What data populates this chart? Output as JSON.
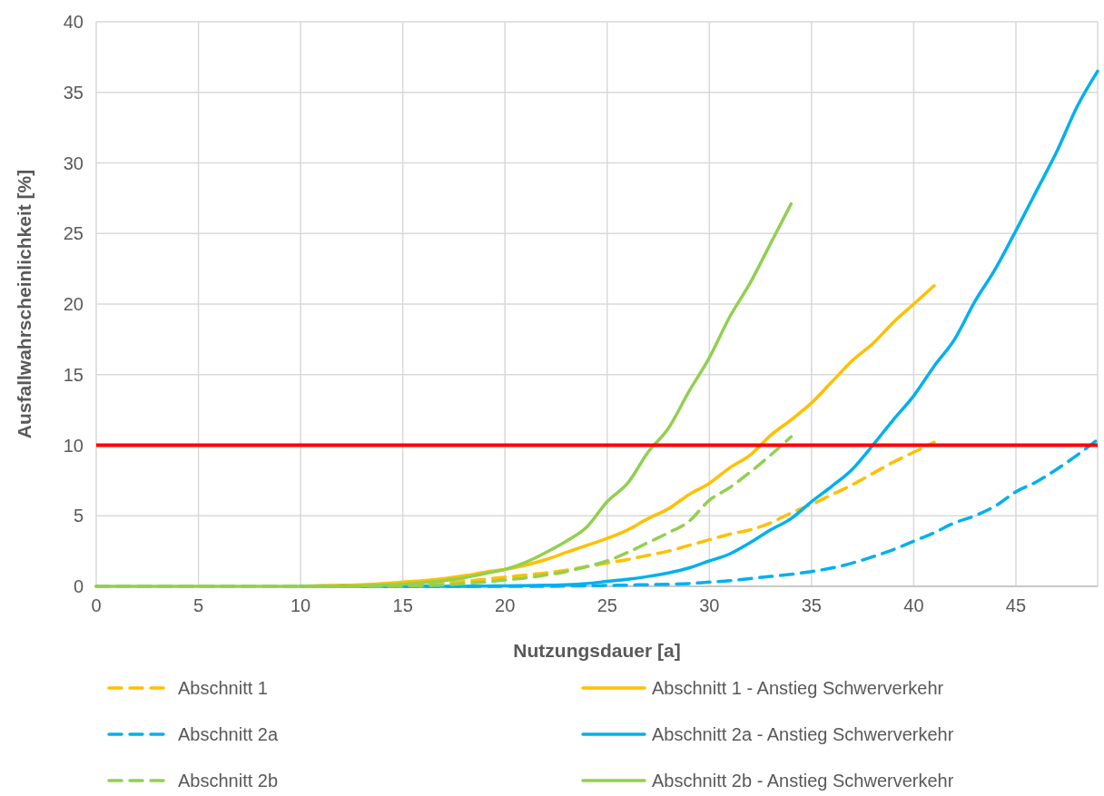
{
  "chart_data": {
    "type": "line",
    "xlabel": "Nutzungsdauer [a]",
    "ylabel": "Ausfallwahrscheinlichkeit [%]",
    "xlim": [
      0,
      49
    ],
    "xticks": [
      0,
      5,
      10,
      15,
      20,
      25,
      30,
      35,
      40,
      45
    ],
    "ylim": [
      0,
      40
    ],
    "yticks": [
      0,
      5,
      10,
      15,
      20,
      25,
      30,
      35,
      40
    ],
    "grid": true,
    "legend": "bottom",
    "marker": "none",
    "ref_lines": [
      {
        "axis": "y",
        "value": 10,
        "color": "#ff0000",
        "line_style": "solid"
      }
    ],
    "series": [
      {
        "name": "Abschnitt 1",
        "color": "#ffc000",
        "line_style": "dashed",
        "x": [
          0,
          5,
          10,
          14,
          15,
          16,
          17,
          18,
          19,
          20,
          21,
          22,
          23,
          24,
          25,
          26,
          27,
          28,
          29,
          30,
          31,
          32,
          33,
          34,
          35,
          36,
          37,
          38,
          39,
          40,
          41
        ],
        "values": [
          0,
          0,
          0,
          0,
          0.1,
          0.15,
          0.25,
          0.35,
          0.5,
          0.65,
          0.8,
          0.95,
          1.15,
          1.4,
          1.65,
          1.9,
          2.2,
          2.5,
          2.9,
          3.3,
          3.7,
          4,
          4.5,
          5.2,
          5.8,
          6.5,
          7.2,
          8,
          8.8,
          9.5,
          10.2
        ]
      },
      {
        "name": "Abschnitt 1 - Anstieg Schwerverkehr",
        "color": "#ffc000",
        "line_style": "solid",
        "x": [
          10,
          11,
          12,
          13,
          14,
          15,
          16,
          17,
          18,
          19,
          20,
          21,
          22,
          23,
          24,
          25,
          26,
          27,
          28,
          29,
          30,
          31,
          32,
          33,
          34,
          35,
          36,
          37,
          38,
          39,
          40,
          41
        ],
        "values": [
          0,
          0.05,
          0.08,
          0.12,
          0.2,
          0.3,
          0.4,
          0.55,
          0.75,
          1,
          1.2,
          1.5,
          1.9,
          2.4,
          2.9,
          3.4,
          4,
          4.8,
          5.5,
          6.5,
          7.3,
          8.4,
          9.3,
          10.7,
          11.8,
          13,
          14.5,
          16,
          17.2,
          18.7,
          20,
          21.3
        ]
      },
      {
        "name": "Abschnitt 2a",
        "color": "#00b0f0",
        "line_style": "dashed",
        "x": [
          10,
          15,
          20,
          22,
          23,
          24,
          25,
          26,
          27,
          28,
          29,
          30,
          31,
          32,
          33,
          34,
          35,
          36,
          37,
          38,
          39,
          40,
          41,
          42,
          43,
          44,
          45,
          46,
          47,
          48,
          49
        ],
        "values": [
          0,
          0,
          0,
          0,
          0.02,
          0.04,
          0.06,
          0.09,
          0.12,
          0.15,
          0.2,
          0.3,
          0.4,
          0.55,
          0.7,
          0.85,
          1.05,
          1.3,
          1.65,
          2.1,
          2.6,
          3.2,
          3.8,
          4.5,
          5,
          5.7,
          6.7,
          7.4,
          8.3,
          9.3,
          10.4
        ]
      },
      {
        "name": "Abschnitt 2a - Anstieg Schwerverkehr",
        "color": "#00b0f0",
        "line_style": "solid",
        "x": [
          10,
          15,
          18,
          19,
          20,
          21,
          22,
          23,
          24,
          25,
          26,
          27,
          28,
          29,
          30,
          31,
          32,
          33,
          34,
          35,
          36,
          37,
          38,
          39,
          40,
          41,
          42,
          43,
          44,
          45,
          46,
          47,
          48,
          49
        ],
        "values": [
          0,
          0,
          0,
          0.02,
          0.03,
          0.05,
          0.08,
          0.12,
          0.2,
          0.35,
          0.5,
          0.7,
          0.95,
          1.3,
          1.8,
          2.3,
          3.1,
          4,
          4.8,
          6,
          7.1,
          8.3,
          10,
          11.8,
          13.5,
          15.6,
          17.5,
          20.2,
          22.5,
          25.2,
          28,
          30.8,
          34,
          36.5
        ]
      },
      {
        "name": "Abschnitt 2b",
        "color": "#92d050",
        "line_style": "dashed",
        "x": [
          0,
          5,
          10,
          14,
          15,
          16,
          17,
          18,
          19,
          20,
          21,
          22,
          23,
          24,
          25,
          26,
          27,
          28,
          29,
          30,
          31,
          32,
          33,
          34
        ],
        "values": [
          0,
          0,
          0,
          0,
          0.02,
          0.05,
          0.1,
          0.2,
          0.3,
          0.45,
          0.6,
          0.8,
          1.05,
          1.4,
          1.8,
          2.4,
          3.1,
          3.8,
          4.6,
          6.1,
          7,
          8.1,
          9.3,
          10.6
        ]
      },
      {
        "name": "Abschnitt 2b - Anstieg Schwerverkehr",
        "color": "#92d050",
        "line_style": "solid",
        "x": [
          0,
          5,
          10,
          12,
          13,
          14,
          15,
          16,
          17,
          18,
          19,
          20,
          21,
          22,
          23,
          24,
          25,
          26,
          27,
          28,
          29,
          30,
          31,
          32,
          33,
          34
        ],
        "values": [
          0,
          0,
          0,
          0,
          0.03,
          0.08,
          0.15,
          0.25,
          0.4,
          0.6,
          0.9,
          1.2,
          1.7,
          2.4,
          3.2,
          4.2,
          6,
          7.3,
          9.5,
          11.2,
          13.8,
          16.2,
          19.1,
          21.5,
          24.3,
          27.1
        ]
      }
    ]
  }
}
